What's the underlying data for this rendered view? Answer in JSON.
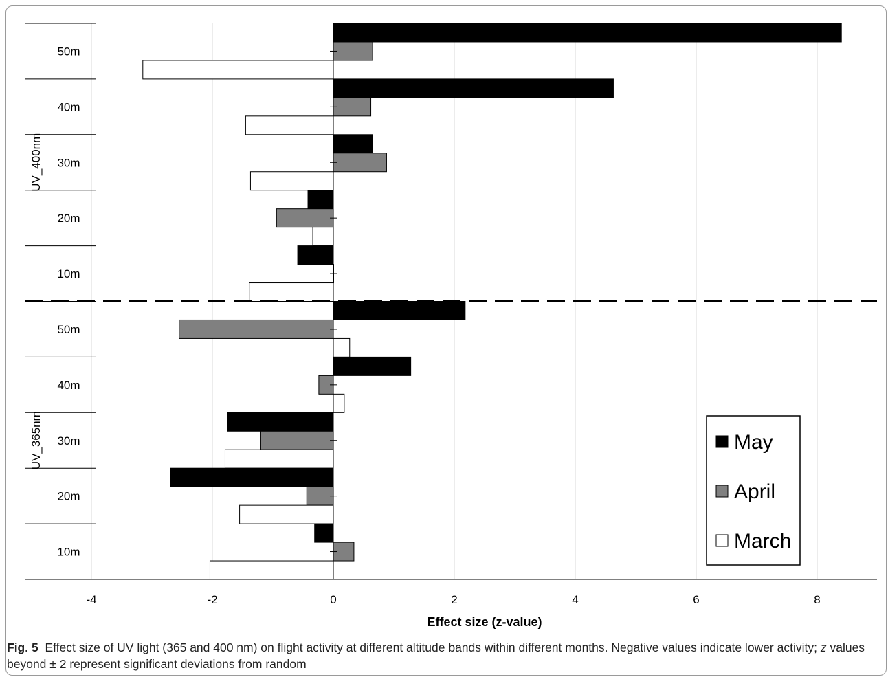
{
  "caption": {
    "label": "Fig. 5",
    "text_before_z": "Effect size of UV light (365 and 400 nm) on flight activity at different altitude bands within different months. Negative values indicate lower activity;",
    "z": "z",
    "text_after_z": "values beyond ± 2 represent significant deviations from random"
  },
  "chart_data": {
    "type": "bar",
    "orientation": "horizontal",
    "xlabel": "Effect size (z-value)",
    "ylabel": "",
    "xlim": [
      -4,
      9
    ],
    "xticks": [
      -4,
      -2,
      0,
      2,
      4,
      6,
      8
    ],
    "grid": true,
    "legend": {
      "position": "bottom-right",
      "entries": [
        "May",
        "April",
        "March"
      ]
    },
    "colors": {
      "May": "#000000",
      "April": "#808080",
      "March": "#ffffff"
    },
    "groups": [
      {
        "name": "UV_400nm",
        "categories": [
          "50m",
          "40m",
          "30m",
          "20m",
          "10m"
        ],
        "series": [
          {
            "name": "May",
            "values": [
              8.4,
              4.63,
              0.65,
              -0.42,
              -0.59
            ]
          },
          {
            "name": "April",
            "values": [
              0.65,
              0.62,
              0.88,
              -0.94,
              0.0
            ]
          },
          {
            "name": "March",
            "values": [
              -3.15,
              -1.45,
              -1.37,
              -0.34,
              -1.39
            ]
          }
        ]
      },
      {
        "name": "UV_365nm",
        "categories": [
          "50m",
          "40m",
          "30m",
          "20m",
          "10m"
        ],
        "series": [
          {
            "name": "May",
            "values": [
              2.18,
              1.28,
              -1.75,
              -2.69,
              -0.31
            ]
          },
          {
            "name": "April",
            "values": [
              -2.55,
              -0.24,
              -1.2,
              -0.44,
              0.34
            ]
          },
          {
            "name": "March",
            "values": [
              0.27,
              0.18,
              -1.79,
              -1.55,
              -2.04
            ]
          }
        ]
      }
    ]
  }
}
